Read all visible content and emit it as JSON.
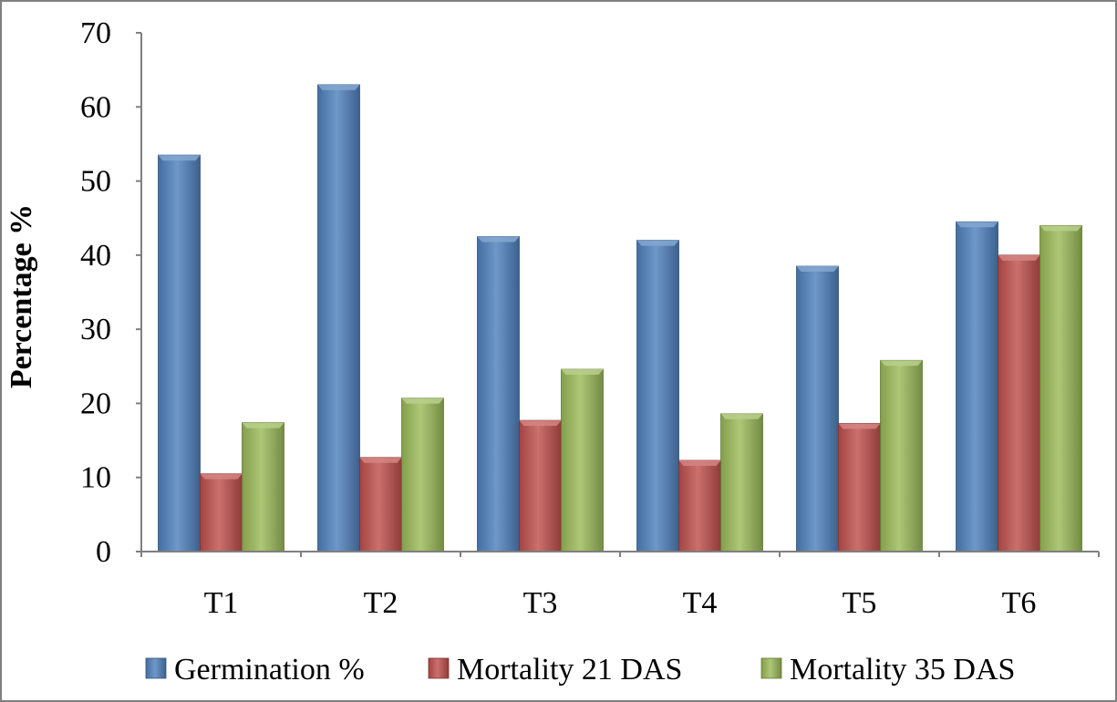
{
  "chart_data": {
    "type": "bar",
    "ylabel": "Percentage %",
    "xlabel": "",
    "ylim": [
      0,
      70
    ],
    "yticks": [
      0,
      10,
      20,
      30,
      40,
      50,
      60,
      70
    ],
    "grid": false,
    "legend_position": "bottom",
    "categories": [
      "T1",
      "T2",
      "T3",
      "T4",
      "T5",
      "T6"
    ],
    "series": [
      {
        "name": "Germination %",
        "color": "#4F81BD",
        "values": [
          53.5,
          63,
          42.5,
          42,
          38.5,
          44.5
        ]
      },
      {
        "name": "Mortality 21 DAS",
        "color": "#C0504D",
        "values": [
          10.5,
          12.7,
          17.7,
          12.3,
          17.3,
          40
        ]
      },
      {
        "name": "Mortality 35 DAS",
        "color": "#9BBB59",
        "values": [
          17.4,
          20.7,
          24.6,
          18.6,
          25.8,
          44
        ]
      }
    ]
  }
}
